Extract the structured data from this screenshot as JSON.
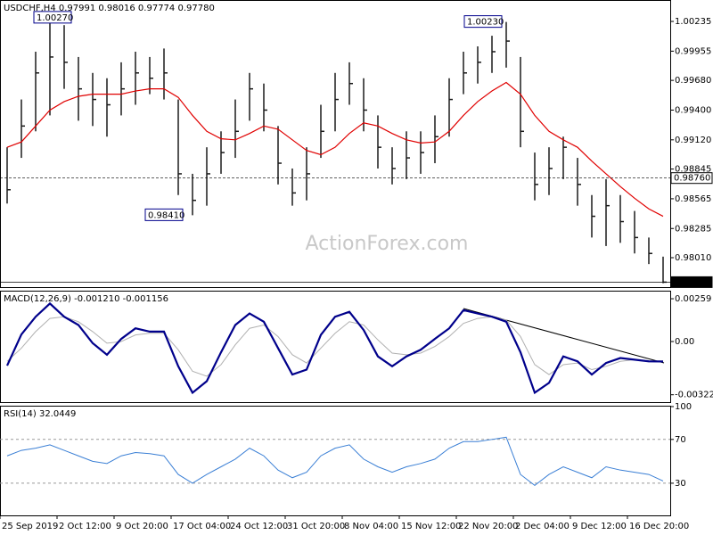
{
  "chart_data": [
    {
      "type": "ohlc",
      "title": "USDCHF,H4 0.97991 0.98016 0.97774 0.97780",
      "watermark": "ActionForex.com",
      "color": "#1a1a1a",
      "high": [
        0.9905,
        0.995,
        0.9995,
        1.0027,
        1.002,
        0.999,
        0.9975,
        0.997,
        0.9985,
        0.9995,
        0.999,
        0.9998,
        0.995,
        0.988,
        0.9905,
        0.992,
        0.995,
        0.9975,
        0.9965,
        0.9925,
        0.9885,
        0.9905,
        0.9945,
        0.9975,
        0.9985,
        0.997,
        0.9935,
        0.9905,
        0.992,
        0.992,
        0.9935,
        0.997,
        0.9995,
        1.0,
        1.001,
        1.0023,
        0.999,
        0.99,
        0.9905,
        0.9915,
        0.9895,
        0.986,
        0.9875,
        0.986,
        0.9845,
        0.982,
        0.9802
      ],
      "low": [
        0.9852,
        0.9895,
        0.992,
        0.9935,
        0.996,
        0.993,
        0.9925,
        0.9915,
        0.9935,
        0.9945,
        0.9955,
        0.995,
        0.986,
        0.9841,
        0.985,
        0.988,
        0.9895,
        0.993,
        0.992,
        0.987,
        0.985,
        0.9855,
        0.9895,
        0.992,
        0.9945,
        0.992,
        0.9885,
        0.987,
        0.9875,
        0.988,
        0.989,
        0.9915,
        0.9955,
        0.9965,
        0.9975,
        0.998,
        0.9905,
        0.9855,
        0.986,
        0.9875,
        0.985,
        0.982,
        0.9812,
        0.9815,
        0.9805,
        0.9795,
        0.9777
      ],
      "close": [
        0.9865,
        0.9925,
        0.9975,
        0.999,
        0.9985,
        0.996,
        0.995,
        0.9945,
        0.996,
        0.9975,
        0.997,
        0.9975,
        0.988,
        0.9855,
        0.988,
        0.99,
        0.992,
        0.996,
        0.994,
        0.989,
        0.9862,
        0.988,
        0.992,
        0.995,
        0.9965,
        0.994,
        0.9905,
        0.9885,
        0.9895,
        0.99,
        0.9915,
        0.995,
        0.9975,
        0.9985,
        0.9995,
        1.0005,
        0.992,
        0.987,
        0.9885,
        0.9905,
        0.987,
        0.984,
        0.985,
        0.9835,
        0.982,
        0.9805,
        0.9778
      ],
      "overlay": {
        "color": "#e00000",
        "values": [
          0.9905,
          0.991,
          0.9925,
          0.994,
          0.9948,
          0.9953,
          0.9955,
          0.9955,
          0.9955,
          0.9958,
          0.996,
          0.996,
          0.9952,
          0.9935,
          0.992,
          0.9913,
          0.9912,
          0.9918,
          0.9925,
          0.9922,
          0.9912,
          0.9902,
          0.9898,
          0.9905,
          0.9918,
          0.9928,
          0.9925,
          0.9918,
          0.9912,
          0.9909,
          0.991,
          0.992,
          0.9935,
          0.9948,
          0.9958,
          0.9966,
          0.9955,
          0.9935,
          0.992,
          0.9912,
          0.9905,
          0.9892,
          0.988,
          0.9868,
          0.9857,
          0.9847,
          0.984
        ]
      },
      "ylim": [
        0.97733,
        1.0042
      ],
      "yticks": [
        1.00235,
        0.99955,
        {
          "value": 0.9968,
          "label": "0.99680"
        },
        {
          "value": 0.994,
          "label": "0.99400"
        },
        {
          "value": 0.9912,
          "label": "0.99120"
        },
        0.98845,
        0.98565,
        0.98285,
        {
          "value": 0.9801,
          "label": "0.98010"
        }
      ],
      "annotations": [
        {
          "value": 1.0027,
          "label": "1.00270"
        },
        {
          "value": 1.0023,
          "label": "1.00230"
        },
        {
          "value": 0.9841,
          "label": "0.98410"
        }
      ],
      "levels": [
        {
          "value": 0.9876,
          "label": "0.98760",
          "color": "#ffffff"
        },
        {
          "value": 0.9778,
          "label": "0.97780",
          "color": "#000000"
        }
      ]
    },
    {
      "type": "line",
      "title": "MACD(12,26,9) -0.001210 -0.001156",
      "series": [
        {
          "color": "#00008b",
          "values": [
            -0.00146,
            0.00043,
            0.0015,
            0.0023,
            0.0015,
            0.001,
            -0.0001,
            -0.0008,
            0.00016,
            0.0008,
            0.0006,
            0.0006,
            -0.0015,
            -0.0031,
            -0.0024,
            -0.00065,
            0.001,
            0.0017,
            0.0012,
            -0.0004,
            -0.002,
            -0.0017,
            0.0004,
            0.0015,
            0.0018,
            0.0007,
            -0.0009,
            -0.0015,
            -0.0009,
            -0.0005,
            0.00016,
            0.0008,
            0.0019,
            0.0017,
            0.0015,
            0.0012,
            -0.00065,
            -0.0031,
            -0.0025,
            -0.0009,
            -0.0012,
            -0.002,
            -0.0013,
            -0.001,
            -0.0011,
            -0.0012,
            -0.00121
          ]
        },
        {
          "color": "#b0b0b0",
          "values": [
            -0.0012,
            -0.0004,
            0.0006,
            0.0014,
            0.0015,
            0.0012,
            0.0006,
            -0.0001,
            0.0,
            0.0004,
            0.0005,
            0.0005,
            -0.0005,
            -0.0018,
            -0.0021,
            -0.0014,
            -0.0002,
            0.0008,
            0.001,
            0.0003,
            -0.0008,
            -0.0013,
            -0.0004,
            0.0005,
            0.0012,
            0.001,
            0.0001,
            -0.0007,
            -0.0008,
            -0.0007,
            -0.0003,
            0.0003,
            0.0011,
            0.0014,
            0.0015,
            0.0013,
            0.0003,
            -0.0014,
            -0.002,
            -0.0014,
            -0.0013,
            -0.0017,
            -0.0015,
            -0.0012,
            -0.0011,
            -0.0012,
            -0.001156
          ]
        }
      ],
      "ylim": [
        -0.003615,
        0.00297
      ],
      "yticks": [
        0.00259,
        {
          "value": 0,
          "label": "0.00"
        },
        -0.003221
      ]
    },
    {
      "type": "line",
      "title": "RSI(14) 32.0449",
      "categories": [
        "25 Sep 2019",
        null,
        null,
        null,
        "2 Oct 12:00",
        null,
        null,
        null,
        "9 Oct 20:00",
        null,
        null,
        null,
        "17 Oct 04:00",
        null,
        null,
        null,
        "24 Oct 12:00",
        null,
        null,
        null,
        "31 Oct 20:00",
        null,
        null,
        null,
        "8 Nov 04:00",
        null,
        null,
        null,
        "15 Nov 12:00",
        null,
        null,
        null,
        "22 Nov 20:00",
        null,
        null,
        null,
        "2 Dec 04:00",
        null,
        null,
        null,
        "9 Dec 12:00",
        null,
        null,
        null,
        "16 Dec 20:00",
        null,
        null
      ],
      "series": [
        {
          "color": "#3a7fd5",
          "values": [
            55,
            60,
            62,
            65,
            60,
            55,
            50,
            48,
            55,
            58,
            57,
            55,
            38,
            30,
            38,
            45,
            52,
            62,
            55,
            42,
            35,
            40,
            55,
            62,
            65,
            52,
            45,
            40,
            45,
            48,
            52,
            62,
            68,
            68,
            70,
            72,
            38,
            28,
            38,
            45,
            40,
            35,
            45,
            42,
            40,
            38,
            32
          ]
        }
      ],
      "ylim": [
        0.6,
        100.8
      ],
      "yticks": [
        100,
        70,
        30
      ],
      "levels": [
        70,
        30
      ]
    }
  ]
}
